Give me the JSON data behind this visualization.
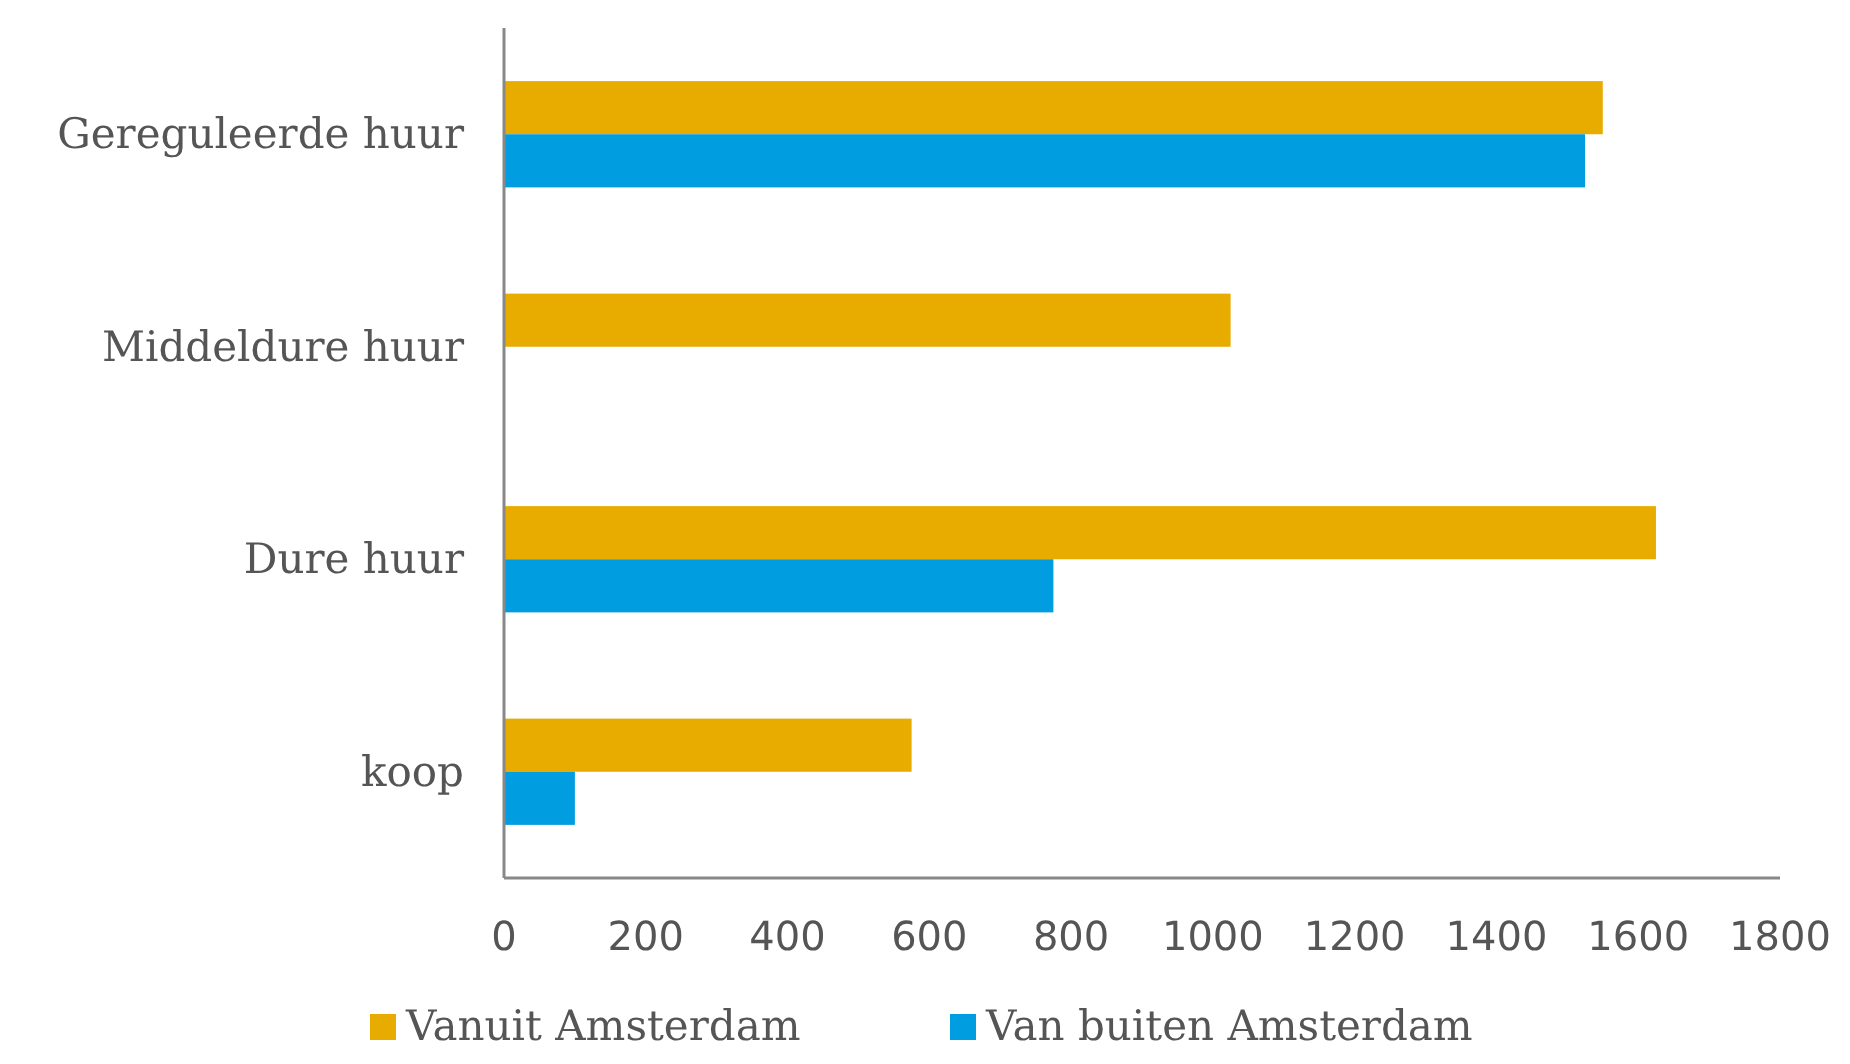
{
  "chart_data": {
    "type": "bar",
    "orientation": "horizontal",
    "categories": [
      "Gereguleerde huur",
      "Middeldure huur",
      "Dure huur",
      "koop"
    ],
    "series": [
      {
        "name": "Vanuit Amsterdam",
        "color": "#e8ab00",
        "values": [
          1550,
          1025,
          1625,
          575
        ]
      },
      {
        "name": "Van buiten Amsterdam",
        "color": "#009de0",
        "values": [
          1525,
          0,
          775,
          100
        ]
      }
    ],
    "xlim": [
      0,
      1800
    ],
    "xticks": [
      0,
      200,
      400,
      600,
      800,
      1000,
      1200,
      1400,
      1600,
      1800
    ],
    "grid": false,
    "legend": "bottom"
  }
}
